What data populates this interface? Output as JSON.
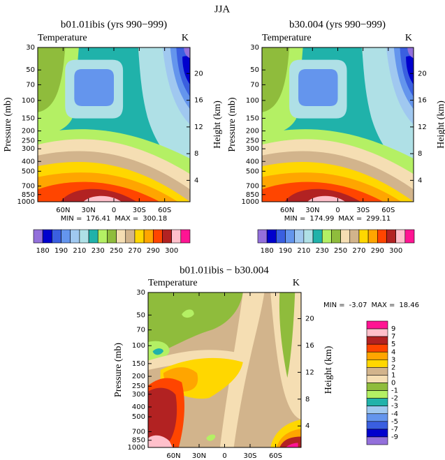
{
  "page_title": "JJA",
  "chart_data": [
    {
      "type": "contour",
      "title": "b01.01ibis (yrs 990−999)",
      "left_string": "Temperature",
      "right_string": "K",
      "ylabel": "Pressure (mb)",
      "y2label": "Height (km)",
      "min_label": "MIN =",
      "min": 176.41,
      "max_label": "MAX =",
      "max": 300.18,
      "xlim": [
        90,
        -90
      ],
      "xticks": [
        {
          "value": 60,
          "label": "60N"
        },
        {
          "value": 30,
          "label": "30N"
        },
        0,
        {
          "value": -30,
          "label": "30S"
        },
        {
          "value": -60,
          "label": "60S"
        }
      ],
      "ylim": [
        1000,
        30
      ],
      "log_y": true,
      "yticks": [
        30,
        50,
        70,
        100,
        150,
        200,
        250,
        300,
        400,
        500,
        700,
        850,
        1000
      ],
      "y2lim": [
        0.8,
        23.9
      ],
      "y2ticks": [
        4,
        8,
        12,
        16,
        20
      ],
      "colorbar": {
        "orientation": "horizontal",
        "colors": [
          "#9370db",
          "#0000cd",
          "#3a5fe0",
          "#6495ed",
          "#a0c8f0",
          "#afe0e6",
          "#20b2aa",
          "#b4f064",
          "#8fbc3c",
          "#f5deb3",
          "#d2b48c",
          "#ffd700",
          "#ffa500",
          "#ff4500",
          "#b22222",
          "#ffc0cb",
          "#ff1493"
        ],
        "labels": [
          180,
          190,
          210,
          230,
          250,
          270,
          290,
          300
        ]
      }
    },
    {
      "type": "contour",
      "title": "b30.004 (yrs 990−999)",
      "left_string": "Temperature",
      "right_string": "K",
      "ylabel": "Pressure (mb)",
      "y2label": "Height (km)",
      "min_label": "MIN =",
      "min": 174.99,
      "max_label": "MAX =",
      "max": 299.11,
      "xlim": [
        90,
        -90
      ],
      "xticks": [
        {
          "value": 60,
          "label": "60N"
        },
        {
          "value": 30,
          "label": "30N"
        },
        0,
        {
          "value": -30,
          "label": "30S"
        },
        {
          "value": -60,
          "label": "60S"
        }
      ],
      "ylim": [
        1000,
        30
      ],
      "log_y": true,
      "yticks": [
        30,
        50,
        70,
        100,
        150,
        200,
        250,
        300,
        400,
        500,
        700,
        850,
        1000
      ],
      "y2lim": [
        0.8,
        23.9
      ],
      "y2ticks": [
        4,
        8,
        12,
        16,
        20
      ],
      "colorbar": {
        "orientation": "horizontal",
        "colors": [
          "#9370db",
          "#0000cd",
          "#3a5fe0",
          "#6495ed",
          "#a0c8f0",
          "#afe0e6",
          "#20b2aa",
          "#b4f064",
          "#8fbc3c",
          "#f5deb3",
          "#d2b48c",
          "#ffd700",
          "#ffa500",
          "#ff4500",
          "#b22222",
          "#ffc0cb",
          "#ff1493"
        ],
        "labels": [
          180,
          190,
          210,
          230,
          250,
          270,
          290,
          300
        ]
      }
    },
    {
      "type": "contour",
      "title": "b01.01ibis − b30.004",
      "left_string": "Temperature",
      "right_string": "K",
      "ylabel": "Pressure (mb)",
      "y2label": "Height (km)",
      "min_label": "MIN =",
      "min": -3.07,
      "max_label": "MAX =",
      "max": 18.46,
      "xlim": [
        90,
        -90
      ],
      "xticks": [
        {
          "value": 60,
          "label": "60N"
        },
        {
          "value": 30,
          "label": "30N"
        },
        0,
        {
          "value": -30,
          "label": "30S"
        },
        {
          "value": -60,
          "label": "60S"
        }
      ],
      "ylim": [
        1000,
        30
      ],
      "log_y": true,
      "yticks": [
        30,
        50,
        70,
        100,
        150,
        200,
        250,
        300,
        400,
        500,
        700,
        850,
        1000
      ],
      "y2lim": [
        0.8,
        23.9
      ],
      "y2ticks": [
        4,
        8,
        12,
        16,
        20
      ],
      "colorbar": {
        "orientation": "vertical",
        "colors": [
          "#ff1493",
          "#ffc0cb",
          "#b22222",
          "#ff4500",
          "#ffa500",
          "#ffd700",
          "#d2b48c",
          "#f5deb3",
          "#8fbc3c",
          "#b4f064",
          "#20b2aa",
          "#a0c8f0",
          "#6495ed",
          "#3a5fe0",
          "#0000cd",
          "#9370db"
        ],
        "labels": [
          9,
          7,
          5,
          4,
          3,
          2,
          1,
          0,
          -1,
          -2,
          -3,
          -4,
          -5,
          -7,
          -9
        ]
      }
    }
  ]
}
